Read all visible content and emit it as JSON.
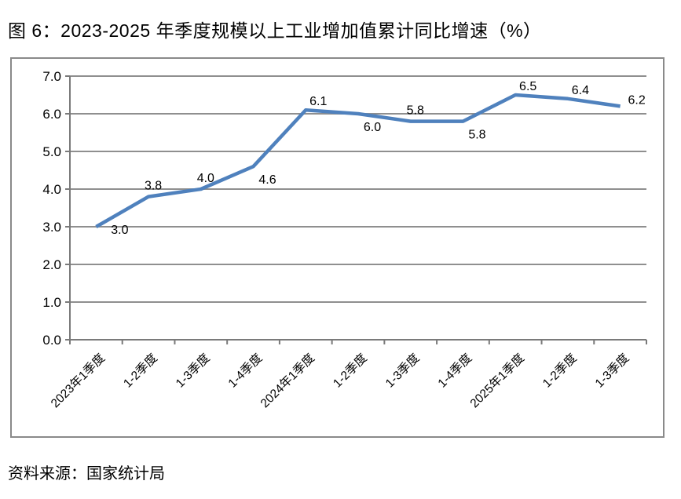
{
  "figure": {
    "title": "图 6：2023-2025 年季度规模以上工业增加值累计同比增速（%）",
    "source": "资料来源：国家统计局"
  },
  "colors": {
    "line": "#4F81BD",
    "grid": "#8f8f8f",
    "axis": "#7a7a7a",
    "chart_border": "#8a8a8a",
    "text": "#000000"
  },
  "chart_data": {
    "type": "line",
    "title": "2023-2025 年季度规模以上工业增加值累计同比增速（%）",
    "xlabel": "",
    "ylabel": "",
    "categories": [
      "2023年1季度",
      "1-2季度",
      "1-3季度",
      "1-4季度",
      "2024年1季度",
      "1-2季度",
      "1-3季度",
      "1-4季度",
      "2025年1季度",
      "1-2季度",
      "1-3季度"
    ],
    "values": [
      3.0,
      3.8,
      4.0,
      4.6,
      6.1,
      6.0,
      5.8,
      5.8,
      6.5,
      6.4,
      6.2
    ],
    "value_labels": [
      "3.0",
      "3.8",
      "4.0",
      "4.6",
      "6.1",
      "6.0",
      "5.8",
      "5.8",
      "6.5",
      "6.4",
      "6.2"
    ],
    "label_positions": [
      "below-right",
      "above",
      "above",
      "below",
      "above-right",
      "below",
      "above",
      "below",
      "above-right",
      "above-right",
      "right"
    ],
    "ylim": [
      0,
      7
    ],
    "ytick_labels": [
      "0.0",
      "1.0",
      "2.0",
      "3.0",
      "4.0",
      "5.0",
      "6.0",
      "7.0"
    ],
    "grid": true,
    "legend": "none",
    "x_label_rotation_deg": 45,
    "marker": "none"
  }
}
